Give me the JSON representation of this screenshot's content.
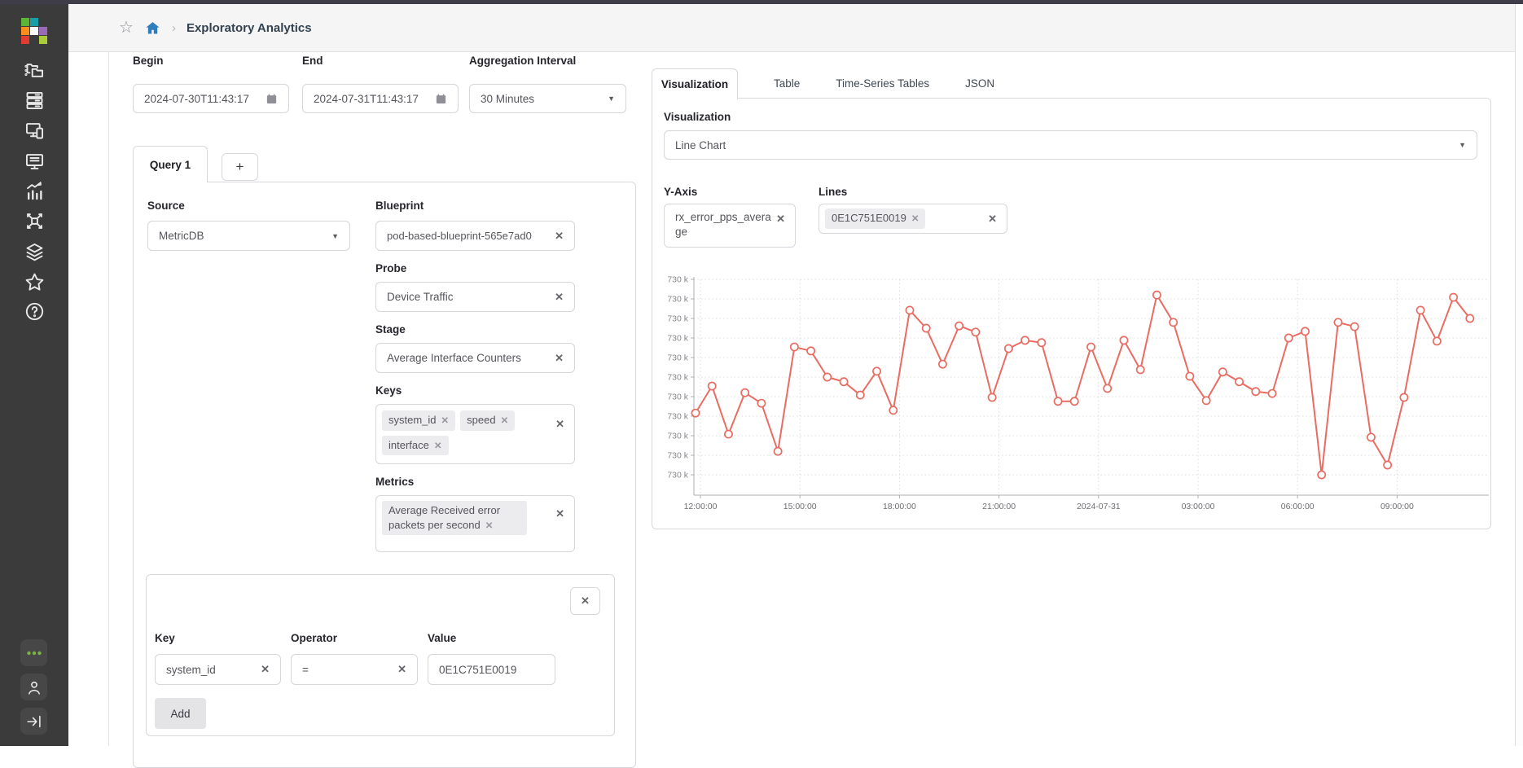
{
  "topbar": {
    "title": "Exploratory Analytics"
  },
  "sidebar": {
    "items": [
      "blueprints",
      "devices",
      "design",
      "resources",
      "analytics",
      "external-systems",
      "platform",
      "favorites",
      "help"
    ],
    "bottom": [
      "more",
      "user",
      "logout"
    ],
    "colors": {
      "bg": "#3b3b3b",
      "dots": "#7cb342"
    },
    "logo_colors": [
      "#5cb535",
      "#199fa8",
      "",
      "#ff8f1c",
      "#ffffff",
      "#9a6ab8",
      "#e03c31",
      "",
      "#aacb3a"
    ]
  },
  "filters": {
    "begin": {
      "label": "Begin",
      "value": "2024-07-30T11:43:17"
    },
    "end": {
      "label": "End",
      "value": "2024-07-31T11:43:17"
    },
    "aggregation": {
      "label": "Aggregation Interval",
      "value": "30 Minutes"
    }
  },
  "query_panel": {
    "tab": "Query 1",
    "add_tab": "+",
    "source": {
      "label": "Source",
      "value": "MetricDB"
    },
    "blueprint": {
      "label": "Blueprint",
      "value": "pod-based-blueprint-565e7ad0"
    },
    "probe": {
      "label": "Probe",
      "value": "Device Traffic"
    },
    "stage": {
      "label": "Stage",
      "value": "Average Interface Counters"
    },
    "keys": {
      "label": "Keys",
      "tags": [
        "system_id",
        "speed",
        "interface"
      ]
    },
    "metrics": {
      "label": "Metrics",
      "tags": [
        "Average Received error packets per second"
      ]
    },
    "filter": {
      "key": {
        "label": "Key",
        "value": "system_id"
      },
      "operator": {
        "label": "Operator",
        "value": "="
      },
      "value": {
        "label": "Value",
        "value": "0E1C751E0019"
      },
      "add_label": "Add"
    }
  },
  "results_panel": {
    "tabs": [
      "Visualization",
      "Table",
      "Time-Series Tables",
      "JSON"
    ],
    "active_tab": "Visualization",
    "visualization": {
      "label": "Visualization",
      "value": "Line Chart"
    },
    "y_axis": {
      "label": "Y-Axis",
      "value": "rx_error_pps_average"
    },
    "lines": {
      "label": "Lines",
      "tags": [
        "0E1C751E0019"
      ]
    }
  },
  "chart_data": {
    "type": "line",
    "title": "",
    "xlabel": "",
    "ylabel": "rx_error_pps_average",
    "series": [
      {
        "name": "0E1C751E0019",
        "color": "#e96c62",
        "start": "2024-07-30T11:45:00",
        "interval_minutes": 30,
        "values": [
          730108,
          730177,
          730054,
          730160,
          730133,
          730010,
          730277,
          730267,
          730200,
          730188,
          730154,
          730215,
          730115,
          730371,
          730325,
          730233,
          730331,
          730315,
          730148,
          730273,
          730294,
          730288,
          730138,
          730138,
          730277,
          730171,
          730294,
          730219,
          730410,
          730340,
          730202,
          730140,
          730213,
          730188,
          730163,
          730158,
          730300,
          730317,
          729950,
          730340,
          730329,
          730046,
          729975,
          730148,
          730371,
          730292,
          730404,
          730350
        ]
      }
    ],
    "x_tick_labels": [
      "12:00:00",
      "15:00:00",
      "18:00:00",
      "21:00:00",
      "2024-07-31",
      "03:00:00",
      "06:00:00",
      "09:00:00"
    ],
    "y_tick_values": [
      729950,
      730000,
      730050,
      730100,
      730150,
      730200,
      730250,
      730300,
      730350,
      730400,
      730450
    ],
    "y_tick_label_text": "730 k",
    "ylim": [
      729900,
      730460
    ],
    "grid": "dashed",
    "legend": "none",
    "marker": "circle-open"
  }
}
